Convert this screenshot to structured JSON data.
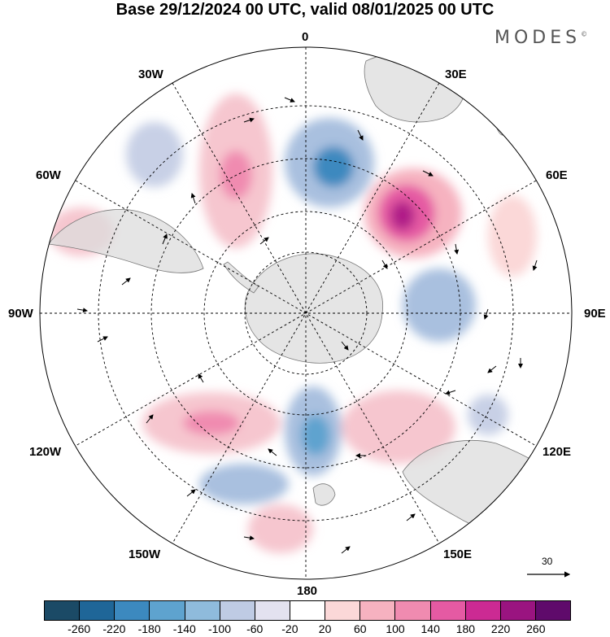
{
  "title": "Base 29/12/2024 00 UTC, valid 08/01/2025 00 UTC",
  "brand": "MODES",
  "brand_mark": "©",
  "longitude_labels": {
    "top": "0",
    "e30": "30E",
    "e60": "60E",
    "e90": "90E",
    "e120": "120E",
    "e150": "150E",
    "bottom": "180",
    "w150": "150W",
    "w120": "120W",
    "w90": "90W",
    "w60": "60W",
    "w30": "30W"
  },
  "reference_vector": "30",
  "colorbar": {
    "colors": [
      "#1b4a66",
      "#1f6698",
      "#3c89bf",
      "#5ea3cf",
      "#8fbbdc",
      "#bfcbe4",
      "#e3e2f0",
      "#ffffff",
      "#fbd8d8",
      "#f6b2c0",
      "#f08bb0",
      "#e55aa3",
      "#cc2a93",
      "#9a1480",
      "#5f0a6b"
    ],
    "labels": [
      "-260",
      "-220",
      "-180",
      "-140",
      "-100",
      "-60",
      "-20",
      "20",
      "60",
      "100",
      "140",
      "180",
      "220",
      "260"
    ]
  }
}
